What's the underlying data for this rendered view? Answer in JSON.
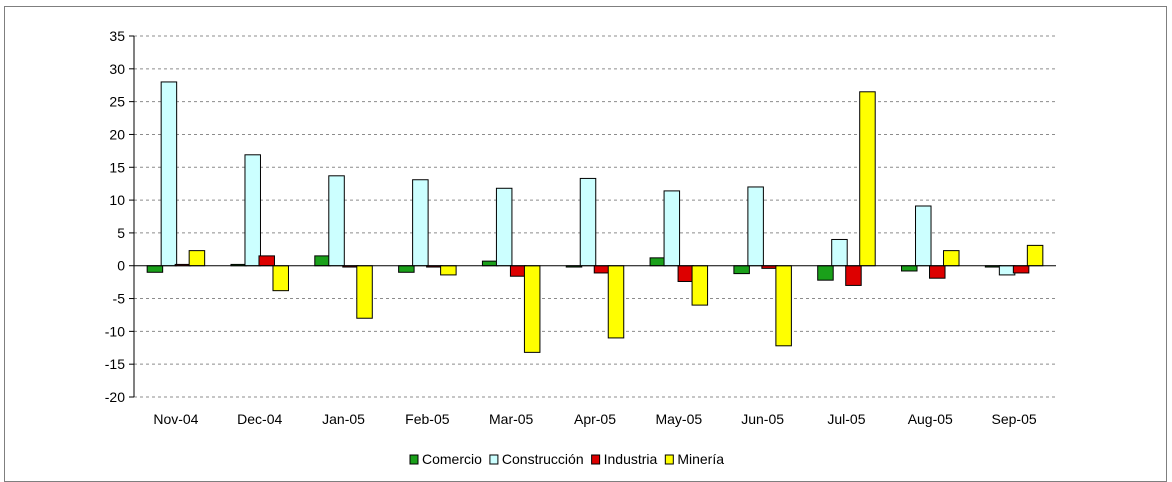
{
  "chart_data": {
    "type": "bar",
    "title": "",
    "xlabel": "",
    "ylabel": "",
    "categories": [
      "Nov-04",
      "Dec-04",
      "Jan-05",
      "Feb-05",
      "Mar-05",
      "Apr-05",
      "May-05",
      "Jun-05",
      "Jul-05",
      "Aug-05",
      "Sep-05"
    ],
    "ylim": [
      -20,
      35
    ],
    "yticks": [
      "35",
      "30",
      "25",
      "20",
      "15",
      "10",
      "5",
      "0",
      "-5",
      "-10",
      "-15",
      "-20"
    ],
    "grid": true,
    "legend_position": "bottom",
    "series": [
      {
        "name": "Comercio",
        "color": "#1aa01a",
        "values": [
          -1.0,
          0.2,
          1.5,
          -1.0,
          0.7,
          -0.2,
          1.2,
          -1.2,
          -2.2,
          -0.8,
          -0.2
        ]
      },
      {
        "name": "Construcción",
        "color": "#ccffff",
        "values": [
          28.0,
          16.9,
          13.7,
          13.1,
          11.8,
          13.3,
          11.4,
          12.0,
          4.0,
          9.1,
          -1.4
        ]
      },
      {
        "name": "Industria",
        "color": "#dd0000",
        "values": [
          0.2,
          1.5,
          -0.2,
          -0.2,
          -1.6,
          -1.1,
          -2.4,
          -0.4,
          -3.0,
          -1.9,
          -1.1
        ]
      },
      {
        "name": "Minería",
        "color": "#ffff00",
        "values": [
          2.3,
          -3.8,
          -8.0,
          -1.4,
          -13.2,
          -11.0,
          -6.0,
          -12.2,
          26.5,
          2.3,
          3.1
        ]
      }
    ]
  }
}
